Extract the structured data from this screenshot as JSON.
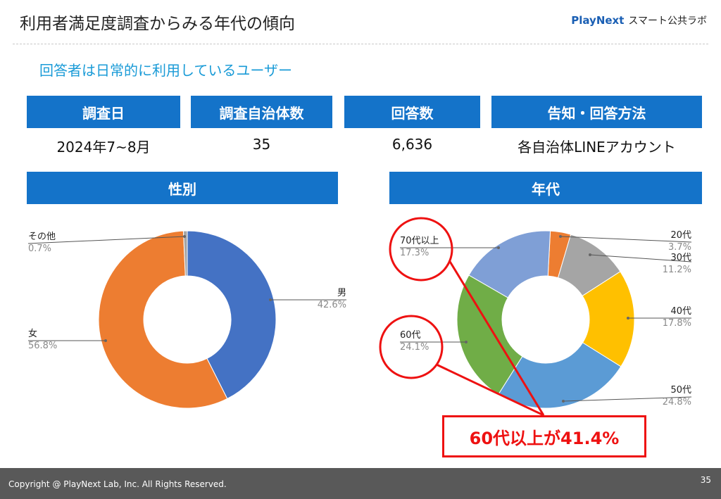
{
  "header": {
    "title": "利用者満足度調査からみる年代の傾向",
    "brand_logo": "PlayNext",
    "brand_lab": "スマート公共ラボ"
  },
  "subtitle": "回答者は日常的に利用しているユーザー",
  "summary": [
    {
      "label": "調査日",
      "value": "2024年7~8月"
    },
    {
      "label": "調査自治体数",
      "value": "35"
    },
    {
      "label": "回答数",
      "value": "6,636"
    },
    {
      "label": "告知・回答方法",
      "value": "各自治体LINEアカウント"
    }
  ],
  "callout": "60代以上が41.4%",
  "footer": {
    "copyright": "Copyright @ PlayNext Lab, Inc. All Rights Reserved.",
    "page": "35"
  },
  "chart_data": [
    {
      "type": "pie",
      "title": "性別",
      "categories": [
        "男",
        "女",
        "その他"
      ],
      "values": [
        42.6,
        56.8,
        0.7
      ],
      "labels": [
        "42.6%",
        "56.8%",
        "0.7%"
      ],
      "colors": [
        "#4472c4",
        "#ed7d31",
        "#a5a5a5"
      ],
      "hole": true
    },
    {
      "type": "pie",
      "title": "年代",
      "categories": [
        "20代",
        "30代",
        "40代",
        "50代",
        "60代",
        "70代以上"
      ],
      "values": [
        3.7,
        11.2,
        17.8,
        24.8,
        24.1,
        17.3
      ],
      "labels": [
        "3.7%",
        "11.2%",
        "17.8%",
        "24.8%",
        "24.1%",
        "17.3%"
      ],
      "colors": [
        "#ed7d31",
        "#a5a5a5",
        "#ffc000",
        "#5b9bd5",
        "#70ad47",
        "#7f9fd6"
      ],
      "hole": true
    }
  ]
}
